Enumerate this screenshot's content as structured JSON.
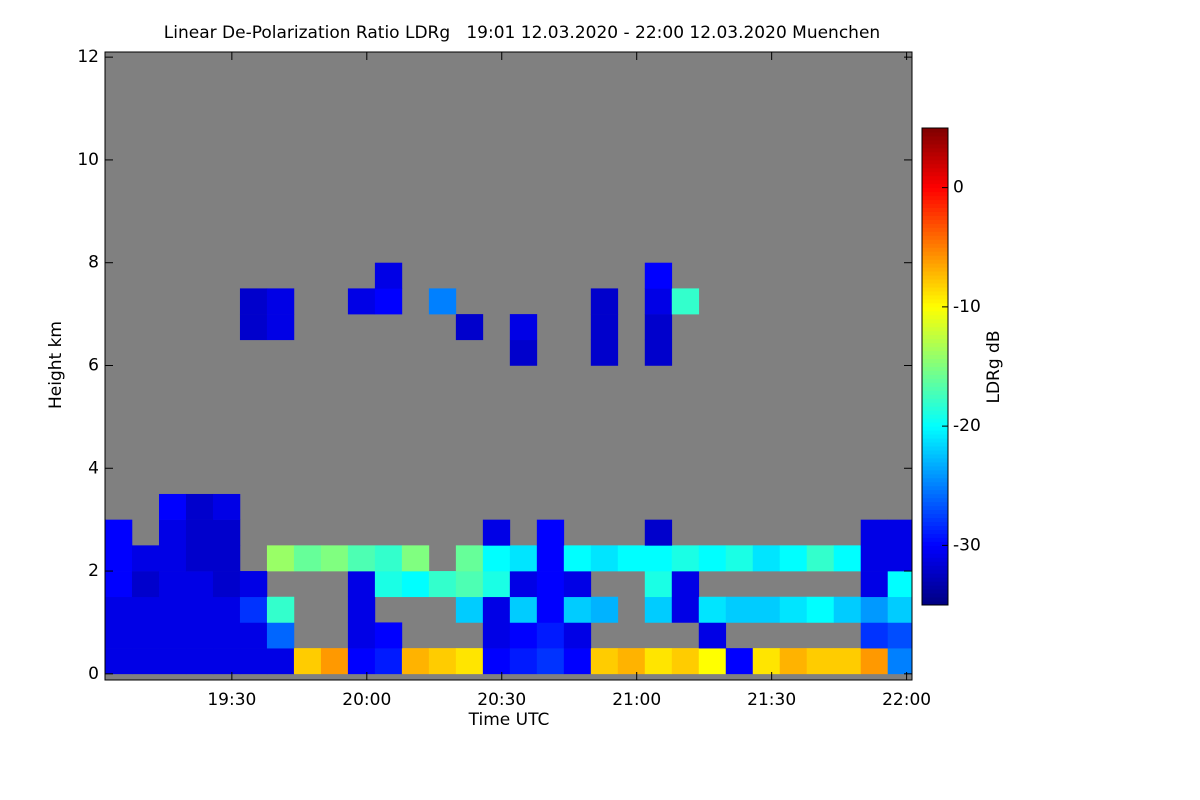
{
  "chart_data": {
    "type": "heatmap",
    "title": "Linear De-Polarization Ratio LDRg   19:01 12.03.2020 - 22:00 12.03.2020 Muenchen",
    "xlabel": "Time UTC",
    "ylabel": "Height km",
    "colorbar_label": "LDRg dB",
    "colormap": "jet",
    "background": "#808080",
    "xlim": [
      19.03,
      22.02
    ],
    "ylim": [
      -0.12,
      12.1
    ],
    "clim": [
      -35,
      5
    ],
    "xticks": [
      {
        "value": 19.5,
        "label": "19:30"
      },
      {
        "value": 20.0,
        "label": "20:00"
      },
      {
        "value": 20.5,
        "label": "20:30"
      },
      {
        "value": 21.0,
        "label": "21:00"
      },
      {
        "value": 21.5,
        "label": "21:30"
      },
      {
        "value": 22.0,
        "label": "22:00"
      }
    ],
    "yticks": [
      0,
      2,
      4,
      6,
      8,
      10,
      12
    ],
    "cticks": [
      0,
      -10,
      -20,
      -30
    ],
    "xbins": [
      19.03,
      19.13,
      19.23,
      19.33,
      19.43,
      19.53,
      19.63,
      19.73,
      19.83,
      19.93,
      20.03,
      20.13,
      20.23,
      20.33,
      20.43,
      20.53,
      20.63,
      20.73,
      20.83,
      20.93,
      21.03,
      21.13,
      21.23,
      21.33,
      21.43,
      21.53,
      21.63,
      21.73,
      21.83,
      21.93,
      22.02
    ],
    "ybins": [
      0,
      0.5,
      1,
      1.5,
      2,
      2.5,
      3,
      3.5,
      4,
      4.5,
      5,
      5.5,
      6,
      6.5,
      7,
      7.5,
      8
    ],
    "z": [
      [
        -31,
        -31,
        -31,
        -31,
        -31,
        -31,
        -31,
        -8,
        -6,
        -30,
        -29,
        -7,
        -8,
        -9,
        -30,
        -29,
        -28,
        -30,
        -8,
        -7,
        -9,
        -8,
        -10,
        -30,
        -9,
        -7,
        -8,
        -8,
        -6,
        -25
      ],
      [
        -31,
        -31,
        -31,
        -31,
        -31,
        -31,
        -26,
        null,
        null,
        -31,
        -30,
        null,
        null,
        null,
        -31,
        -30,
        -29,
        -31,
        null,
        null,
        null,
        null,
        -31,
        null,
        null,
        null,
        null,
        null,
        -28,
        -27
      ],
      [
        -31,
        -31,
        -31,
        -31,
        -31,
        -28,
        -18,
        null,
        null,
        -31,
        null,
        null,
        null,
        -22,
        -31,
        -22,
        -30,
        -22,
        -23,
        null,
        -22,
        -31,
        -21,
        -22,
        -22,
        -21,
        -20,
        -22,
        -24,
        -22
      ],
      [
        -30,
        -32,
        -31,
        -31,
        -32,
        -31,
        null,
        null,
        null,
        -31,
        -19,
        -20,
        -18,
        -17,
        -19,
        -31,
        -30,
        -31,
        null,
        null,
        -19,
        -31,
        null,
        null,
        null,
        null,
        null,
        null,
        -31,
        -20
      ],
      [
        -30,
        -31,
        -31,
        -32,
        -32,
        null,
        -14,
        -16,
        -15,
        -17,
        -18,
        -15,
        null,
        -16,
        -20,
        -21,
        -30,
        -20,
        -21,
        -20,
        -20,
        -19,
        -20,
        -19,
        -21,
        -20,
        -18,
        -20,
        -31,
        -31
      ],
      [
        -30,
        null,
        -31,
        -32,
        -32,
        null,
        null,
        null,
        null,
        null,
        null,
        null,
        null,
        null,
        -31,
        null,
        -30,
        null,
        null,
        null,
        -32,
        null,
        null,
        null,
        null,
        null,
        null,
        null,
        -31,
        -31
      ],
      [
        null,
        null,
        -30,
        -32,
        -31,
        null,
        null,
        null,
        null,
        null,
        null,
        null,
        null,
        null,
        null,
        null,
        null,
        null,
        null,
        null,
        null,
        null,
        null,
        null,
        null,
        null,
        null,
        null,
        null,
        null
      ],
      [
        null,
        null,
        null,
        null,
        null,
        null,
        null,
        null,
        null,
        null,
        null,
        null,
        null,
        null,
        null,
        null,
        null,
        null,
        null,
        null,
        null,
        null,
        null,
        null,
        null,
        null,
        null,
        null,
        null,
        null
      ],
      [
        null,
        null,
        null,
        null,
        null,
        null,
        null,
        null,
        null,
        null,
        null,
        null,
        null,
        null,
        null,
        null,
        null,
        null,
        null,
        null,
        null,
        null,
        null,
        null,
        null,
        null,
        null,
        null,
        null,
        null
      ],
      [
        null,
        null,
        null,
        null,
        null,
        null,
        null,
        null,
        null,
        null,
        null,
        null,
        null,
        null,
        null,
        null,
        null,
        null,
        null,
        null,
        null,
        null,
        null,
        null,
        null,
        null,
        null,
        null,
        null,
        null
      ],
      [
        null,
        null,
        null,
        null,
        null,
        null,
        null,
        null,
        null,
        null,
        null,
        null,
        null,
        null,
        null,
        null,
        null,
        null,
        null,
        null,
        null,
        null,
        null,
        null,
        null,
        null,
        null,
        null,
        null,
        null
      ],
      [
        null,
        null,
        null,
        null,
        null,
        null,
        null,
        null,
        null,
        null,
        null,
        null,
        null,
        null,
        null,
        null,
        null,
        null,
        null,
        null,
        null,
        null,
        null,
        null,
        null,
        null,
        null,
        null,
        null,
        null
      ],
      [
        null,
        null,
        null,
        null,
        null,
        null,
        null,
        null,
        null,
        null,
        null,
        null,
        null,
        null,
        null,
        -32,
        null,
        null,
        -32,
        null,
        -32,
        null,
        null,
        null,
        null,
        null,
        null,
        null,
        null,
        null
      ],
      [
        null,
        null,
        null,
        null,
        null,
        -32,
        -31,
        null,
        null,
        null,
        null,
        null,
        null,
        -32,
        null,
        -31,
        null,
        null,
        -32,
        null,
        -32,
        null,
        null,
        null,
        null,
        null,
        null,
        null,
        null,
        null
      ],
      [
        null,
        null,
        null,
        null,
        null,
        -32,
        -31,
        null,
        null,
        -31,
        -30,
        null,
        -25,
        null,
        null,
        null,
        null,
        null,
        -32,
        null,
        -31,
        -18,
        null,
        null,
        null,
        null,
        null,
        null,
        null,
        null
      ],
      [
        null,
        null,
        null,
        null,
        null,
        null,
        null,
        null,
        null,
        null,
        -31,
        null,
        null,
        null,
        null,
        null,
        null,
        null,
        null,
        null,
        -30,
        null,
        null,
        null,
        null,
        null,
        null,
        null,
        null,
        null
      ]
    ]
  }
}
